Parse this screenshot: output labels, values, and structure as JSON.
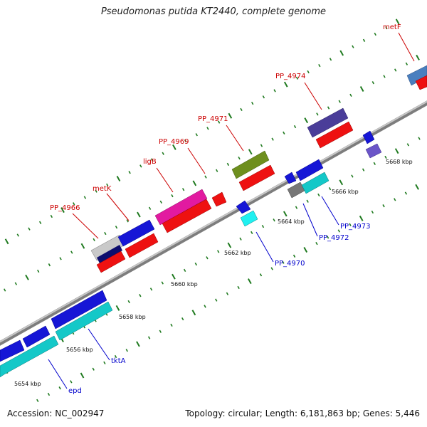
{
  "title": "Pseudomonas putida KT2440, complete genome",
  "footer": {
    "accession": "Accession: NC_002947",
    "summary": "Topology: circular; Length: 6,181,863 bp; Genes: 5,446"
  },
  "colors": {
    "backbone": "#8f8f8f",
    "tick": "#1f7a1f",
    "label_red": "#cc0000",
    "label_blue": "#0000cc"
  },
  "ticks": [
    "5654 kbp",
    "5656 kbp",
    "5658 kbp",
    "5660 kbp",
    "5662 kbp",
    "5664 kbp",
    "5666 kbp",
    "5668 kbp"
  ],
  "genes": [
    {
      "name": "PP_4966",
      "color": "red"
    },
    {
      "name": "metK",
      "color": "red"
    },
    {
      "name": "ligB",
      "color": "red"
    },
    {
      "name": "PP_4969",
      "color": "red"
    },
    {
      "name": "PP_4971",
      "color": "red"
    },
    {
      "name": "PP_4974",
      "color": "red"
    },
    {
      "name": "metF",
      "color": "red"
    },
    {
      "name": "tktA",
      "color": "blue"
    },
    {
      "name": "epd",
      "color": "blue"
    },
    {
      "name": "PP_4970",
      "color": "blue"
    },
    {
      "name": "PP_4972",
      "color": "blue"
    },
    {
      "name": "PP_4973",
      "color": "blue"
    }
  ]
}
